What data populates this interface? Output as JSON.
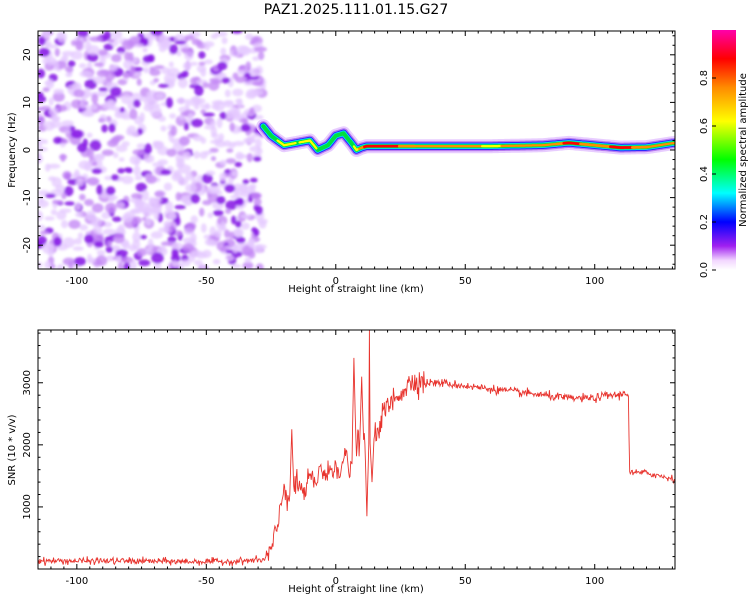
{
  "title": "PAZ1.2025.111.01.15.G27",
  "chart_data": [
    {
      "type": "heatmap",
      "xlabel": "Height of straight line (km)",
      "ylabel": "Frequency (Hz)",
      "xlim": [
        -115,
        131
      ],
      "ylim": [
        -25,
        25
      ],
      "x_ticks": [
        -100,
        -50,
        0,
        50,
        100
      ],
      "y_ticks": [
        -20,
        -10,
        0,
        10,
        20
      ],
      "colorbar": {
        "label": "Normalized spectral amplitude",
        "range": [
          0,
          1
        ],
        "ticks": [
          0.0,
          0.2,
          0.4,
          0.6,
          0.8
        ]
      },
      "noise_region_x": [
        -115,
        -28
      ],
      "ridge": {
        "x": [
          -28,
          -25,
          -20,
          -15,
          -10,
          -7,
          -3,
          0,
          3,
          6,
          8,
          10,
          12,
          20,
          40,
          60,
          80,
          90,
          100,
          110,
          120,
          131
        ],
        "frequency": [
          5,
          3,
          1,
          1.5,
          2,
          0,
          1,
          3,
          3.5,
          1.5,
          0,
          0.5,
          0.8,
          0.8,
          0.8,
          0.8,
          1.0,
          1.5,
          1.0,
          0.5,
          0.6,
          1.5
        ],
        "amplitude": [
          0.35,
          0.5,
          0.75,
          0.6,
          0.7,
          0.6,
          0.55,
          0.5,
          0.5,
          0.55,
          0.7,
          0.85,
          0.95,
          0.9,
          0.8,
          0.75,
          0.8,
          0.9,
          0.85,
          0.9,
          0.85,
          0.8
        ]
      }
    },
    {
      "type": "line",
      "xlabel": "Height of straight line (km)",
      "ylabel": "SNR (10 * v/v)",
      "xlim": [
        -115,
        131
      ],
      "ylim": [
        0,
        3850
      ],
      "x_ticks": [
        -100,
        -50,
        0,
        50,
        100
      ],
      "y_ticks": [
        1000,
        2000,
        3000
      ],
      "color": "#e8342e",
      "series": [
        {
          "x": [
            -115,
            -100,
            -80,
            -60,
            -40,
            -27,
            -24,
            -22,
            -20,
            -18,
            -15,
            -12,
            -10,
            -8,
            -6,
            -4,
            -2,
            0,
            2,
            4,
            6,
            8,
            10,
            12,
            13,
            15,
            18,
            20,
            25,
            30,
            35,
            40,
            50,
            60,
            70,
            80,
            90,
            100,
            105,
            110,
            112,
            113,
            113.5,
            120,
            125,
            131
          ],
          "y": [
            130,
            130,
            130,
            120,
            120,
            150,
            400,
            800,
            1350,
            1100,
            1400,
            1200,
            1500,
            1300,
            1700,
            1450,
            1600,
            1700,
            1600,
            1850,
            1500,
            2100,
            1900,
            2200,
            2050,
            2150,
            2450,
            2600,
            2850,
            3050,
            3000,
            3000,
            2950,
            2900,
            2850,
            2800,
            2750,
            2750,
            2800,
            2800,
            2850,
            2800,
            1550,
            1550,
            1500,
            1450
          ]
        }
      ],
      "spikes": [
        {
          "x": 7,
          "y": 3400
        },
        {
          "x": 13,
          "y": 3850
        },
        {
          "x": 12,
          "y": 850
        },
        {
          "x": 14,
          "y": 1400
        },
        {
          "x": 10,
          "y": 3100
        },
        {
          "x": -17,
          "y": 2250
        }
      ]
    }
  ]
}
